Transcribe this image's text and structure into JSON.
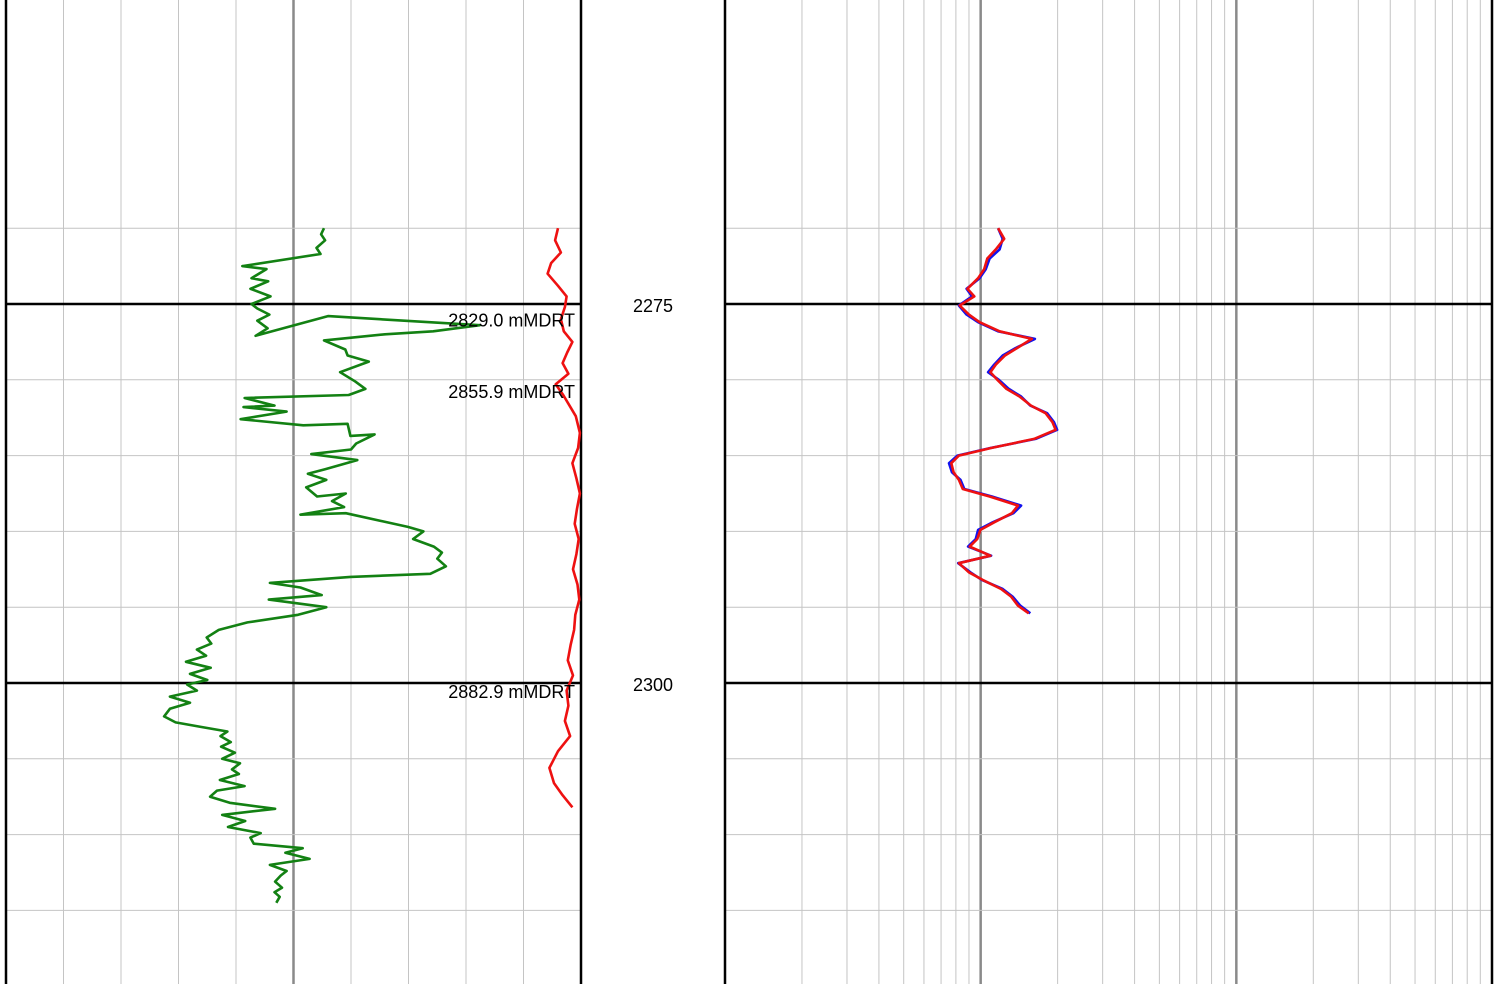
{
  "chart_data": [
    {
      "type": "line",
      "track": "left",
      "title": "",
      "xlabel": "",
      "ylabel": "",
      "y_axis": "depth",
      "ylim": [
        2270.0,
        2320.0
      ],
      "major_depth_lines": [
        2275,
        2300
      ],
      "minor_depth_step": 5,
      "grid": true,
      "series": [
        {
          "color": "#138113",
          "x": [
            0.553,
            0.548,
            0.555,
            0.54,
            0.547,
            0.411,
            0.453,
            0.427,
            0.456,
            0.425,
            0.46,
            0.427,
            0.437,
            0.458,
            0.437,
            0.455,
            0.434,
            0.56,
            0.824,
            0.743,
            0.659,
            0.553,
            0.59,
            0.594,
            0.631,
            0.581,
            0.607,
            0.625,
            0.596,
            0.415,
            0.467,
            0.413,
            0.488,
            0.408,
            0.517,
            0.594,
            0.599,
            0.641,
            0.609,
            0.6,
            0.531,
            0.611,
            0.555,
            0.525,
            0.557,
            0.522,
            0.541,
            0.591,
            0.567,
            0.588,
            0.512,
            0.591,
            0.699,
            0.726,
            0.708,
            0.744,
            0.758,
            0.75,
            0.765,
            0.738,
            0.599,
            0.459,
            0.512,
            0.549,
            0.457,
            0.557,
            0.508,
            0.42,
            0.37,
            0.349,
            0.357,
            0.332,
            0.348,
            0.313,
            0.356,
            0.32,
            0.35,
            0.315,
            0.332,
            0.285,
            0.32,
            0.285,
            0.275,
            0.295,
            0.34,
            0.385,
            0.373,
            0.391,
            0.374,
            0.398,
            0.376,
            0.407,
            0.393,
            0.405,
            0.372,
            0.415,
            0.367,
            0.355,
            0.389,
            0.468,
            0.376,
            0.416,
            0.386,
            0.443,
            0.425,
            0.431,
            0.516,
            0.486,
            0.528,
            0.459,
            0.488,
            0.478,
            0.468,
            0.48,
            0.467,
            0.476,
            0.47
          ],
          "y": [
            2270.0,
            2270.4,
            2270.8,
            2271.3,
            2271.7,
            2272.5,
            2272.7,
            2273.3,
            2273.5,
            2274.0,
            2274.5,
            2275.0,
            2275.3,
            2275.7,
            2276.1,
            2276.6,
            2277.1,
            2275.8,
            2276.4,
            2276.8,
            2277.0,
            2277.4,
            2278.0,
            2278.4,
            2278.8,
            2279.5,
            2280.1,
            2280.6,
            2281.0,
            2281.2,
            2281.7,
            2281.8,
            2282.1,
            2282.6,
            2283.0,
            2282.9,
            2283.7,
            2283.6,
            2284.2,
            2284.6,
            2284.9,
            2285.3,
            2285.9,
            2286.2,
            2286.6,
            2287.1,
            2287.7,
            2287.5,
            2288.0,
            2288.4,
            2288.9,
            2288.8,
            2289.7,
            2290.0,
            2290.5,
            2291.0,
            2291.4,
            2291.8,
            2292.3,
            2292.8,
            2293.0,
            2293.4,
            2293.7,
            2294.2,
            2294.5,
            2295.0,
            2295.5,
            2296.0,
            2296.5,
            2297.0,
            2297.4,
            2297.8,
            2298.2,
            2298.6,
            2299.0,
            2299.4,
            2299.8,
            2300.1,
            2300.5,
            2300.9,
            2301.3,
            2301.7,
            2302.2,
            2302.6,
            2302.9,
            2303.2,
            2303.5,
            2303.9,
            2304.2,
            2304.6,
            2305.0,
            2305.3,
            2305.7,
            2306.0,
            2306.4,
            2306.8,
            2307.1,
            2307.5,
            2307.9,
            2308.3,
            2308.7,
            2309.1,
            2309.5,
            2309.9,
            2310.2,
            2310.6,
            2310.9,
            2311.2,
            2311.6,
            2312.0,
            2312.4,
            2312.7,
            2313.1,
            2313.5,
            2313.8,
            2314.1,
            2314.5
          ],
          "_note_x_scale": "linear"
        },
        {
          "color": "#ee1111",
          "x": [
            0.96,
            0.955,
            0.965,
            0.948,
            0.942,
            0.96,
            0.975,
            0.972,
            0.965,
            0.97,
            0.985,
            0.976,
            0.968,
            0.978,
            0.956,
            0.969,
            0.98,
            0.991,
            0.998,
            0.995,
            0.985,
            0.992,
            0.998,
            0.993,
            0.989,
            0.996,
            0.992,
            0.986,
            0.994,
            0.997,
            0.99,
            0.988,
            0.982,
            0.977,
            0.986,
            0.975,
            0.978,
            0.972,
            0.981,
            0.96,
            0.945,
            0.953,
            0.968,
            0.985
          ],
          "y": [
            2270.0,
            2270.8,
            2271.6,
            2272.3,
            2273.0,
            2273.8,
            2274.5,
            2275.2,
            2276.0,
            2276.8,
            2277.5,
            2278.2,
            2278.9,
            2279.6,
            2280.3,
            2281.0,
            2281.7,
            2282.4,
            2283.5,
            2284.5,
            2285.5,
            2286.5,
            2287.5,
            2288.5,
            2289.5,
            2290.5,
            2291.5,
            2292.5,
            2293.5,
            2294.5,
            2295.5,
            2296.5,
            2297.5,
            2298.5,
            2299.5,
            2300.5,
            2301.5,
            2302.5,
            2303.5,
            2304.5,
            2305.6,
            2306.6,
            2307.4,
            2308.2
          ]
        }
      ],
      "annotations": [
        {
          "text": "2829.0 mMDRT",
          "depth": 2276.1
        },
        {
          "text": "2855.9 mMDRT",
          "depth": 2280.8
        },
        {
          "text": "2882.9 mMDRT",
          "depth": 2300.6
        }
      ]
    },
    {
      "type": "line",
      "track": "right",
      "title": "",
      "xlabel": "",
      "ylabel": "",
      "y_axis": "depth",
      "ylim": [
        2270.0,
        2320.0
      ],
      "x_scale": "log",
      "major_depth_lines": [
        2275,
        2300
      ],
      "minor_depth_step": 5,
      "grid": true,
      "series": [
        {
          "color": "#1111ee",
          "x": [
            0.356,
            0.362,
            0.358,
            0.345,
            0.34,
            0.332,
            0.315,
            0.322,
            0.305,
            0.315,
            0.33,
            0.356,
            0.404,
            0.379,
            0.362,
            0.351,
            0.343,
            0.357,
            0.37,
            0.386,
            0.398,
            0.42,
            0.429,
            0.433,
            0.405,
            0.346,
            0.303,
            0.292,
            0.296,
            0.307,
            0.312,
            0.348,
            0.386,
            0.376,
            0.349,
            0.33,
            0.327,
            0.317,
            0.347,
            0.304,
            0.32,
            0.335,
            0.362,
            0.375,
            0.385,
            0.398
          ],
          "y": [
            2270.0,
            2270.7,
            2271.4,
            2272.0,
            2272.7,
            2273.3,
            2274.0,
            2274.5,
            2275.1,
            2275.7,
            2276.2,
            2276.8,
            2277.3,
            2277.9,
            2278.4,
            2279.0,
            2279.5,
            2280.0,
            2280.6,
            2281.1,
            2281.7,
            2282.2,
            2282.8,
            2283.3,
            2283.9,
            2284.5,
            2285.0,
            2285.5,
            2286.1,
            2286.6,
            2287.2,
            2287.7,
            2288.3,
            2288.8,
            2289.4,
            2289.9,
            2290.5,
            2291.0,
            2291.6,
            2292.1,
            2292.7,
            2293.2,
            2293.8,
            2294.3,
            2294.9,
            2295.4
          ]
        },
        {
          "color": "#ee1111",
          "x": [
            0.356,
            0.364,
            0.353,
            0.342,
            0.338,
            0.33,
            0.316,
            0.325,
            0.306,
            0.318,
            0.332,
            0.358,
            0.4,
            0.381,
            0.365,
            0.353,
            0.346,
            0.355,
            0.367,
            0.384,
            0.399,
            0.418,
            0.427,
            0.431,
            0.403,
            0.347,
            0.305,
            0.295,
            0.298,
            0.305,
            0.31,
            0.345,
            0.382,
            0.374,
            0.351,
            0.333,
            0.329,
            0.319,
            0.346,
            0.305,
            0.318,
            0.336,
            0.36,
            0.373,
            0.382,
            0.396
          ],
          "y": [
            2270.0,
            2270.7,
            2271.4,
            2272.0,
            2272.7,
            2273.3,
            2274.0,
            2274.5,
            2275.1,
            2275.7,
            2276.2,
            2276.8,
            2277.3,
            2277.9,
            2278.4,
            2279.0,
            2279.5,
            2280.0,
            2280.6,
            2281.1,
            2281.7,
            2282.2,
            2282.8,
            2283.3,
            2283.9,
            2284.5,
            2285.0,
            2285.5,
            2286.1,
            2286.6,
            2287.2,
            2287.7,
            2288.3,
            2288.8,
            2289.4,
            2289.9,
            2290.5,
            2291.0,
            2291.6,
            2292.1,
            2292.7,
            2293.2,
            2293.8,
            2294.3,
            2294.9,
            2295.4
          ]
        }
      ]
    }
  ],
  "depth_labels": [
    {
      "text": "2275",
      "depth": 2275
    },
    {
      "text": "2300",
      "depth": 2300
    }
  ]
}
